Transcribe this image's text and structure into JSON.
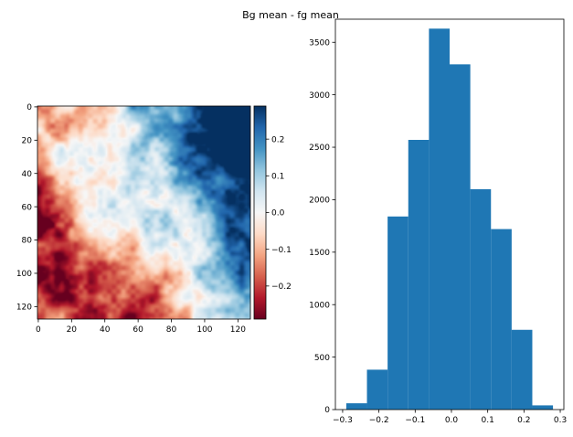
{
  "figure": {
    "title": "Bg mean - fg mean"
  },
  "chart_data": [
    {
      "type": "heatmap",
      "colormap": "RdBu",
      "grid_size": [
        128,
        128
      ],
      "xticks": [
        0,
        20,
        40,
        60,
        80,
        100,
        120
      ],
      "yticks": [
        0,
        20,
        40,
        60,
        80,
        100,
        120
      ],
      "xlim": [
        0,
        128
      ],
      "ylim": [
        128,
        0
      ],
      "colorbar": {
        "vmin": -0.29,
        "vmax": 0.29,
        "ticks": [
          -0.2,
          -0.1,
          0.0,
          0.1,
          0.2
        ],
        "tick_labels": [
          "−0.2",
          "−0.1",
          "0.0",
          "0.1",
          "0.2"
        ]
      },
      "colors": [
        "#67001f",
        "#b2182b",
        "#d6604d",
        "#f4a582",
        "#fddbc7",
        "#f7f7f7",
        "#d1e5f0",
        "#92c5de",
        "#4393c3",
        "#2166ac",
        "#053061"
      ]
    },
    {
      "type": "bar",
      "subtype": "histogram",
      "bin_edges": [
        -0.29,
        -0.233,
        -0.176,
        -0.119,
        -0.062,
        -0.005,
        0.052,
        0.109,
        0.166,
        0.223,
        0.28
      ],
      "values": [
        60,
        380,
        1840,
        2570,
        3630,
        3290,
        2100,
        1720,
        760,
        40
      ],
      "xlim": [
        -0.32,
        0.31
      ],
      "ylim": [
        0,
        3720
      ],
      "xticks": [
        -0.3,
        -0.2,
        -0.1,
        0.0,
        0.1,
        0.2,
        0.3
      ],
      "xtick_labels": [
        "−0.3",
        "−0.2",
        "−0.1",
        "0.0",
        "0.1",
        "0.2",
        "0.3"
      ],
      "yticks": [
        0,
        500,
        1000,
        1500,
        2000,
        2500,
        3000,
        3500
      ],
      "ytick_labels": [
        "0",
        "500",
        "1000",
        "1500",
        "2000",
        "2500",
        "3000",
        "3500"
      ],
      "color": "#1f77b4"
    }
  ]
}
